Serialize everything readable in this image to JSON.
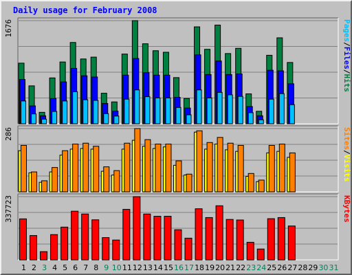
{
  "title": "Daily usage for February 2008",
  "chart_data": [
    {
      "type": "bar",
      "panel": "top",
      "ymax_label": "1676",
      "legend": [
        {
          "text": "Pages",
          "color": "#00c0ff"
        },
        {
          "text": "/",
          "color": "#000000"
        },
        {
          "text": "Files",
          "color": "#0000ff"
        },
        {
          "text": "/",
          "color": "#000000"
        },
        {
          "text": "Hits",
          "color": "#008040"
        }
      ],
      "days": [
        1,
        2,
        3,
        4,
        5,
        6,
        7,
        8,
        9,
        10,
        11,
        12,
        13,
        14,
        15,
        16,
        17,
        18,
        19,
        20,
        21,
        22,
        23,
        24,
        25,
        26,
        27
      ],
      "series": [
        {
          "name": "Hits",
          "color": "#008040",
          "values": [
            985,
            616,
            186,
            745,
            1004,
            1321,
            1053,
            1083,
            496,
            355,
            1133,
            1676,
            1300,
            1187,
            1162,
            750,
            411,
            1575,
            1210,
            1604,
            1141,
            1226,
            486,
            203,
            1113,
            1397,
            996
          ]
        },
        {
          "name": "Files",
          "color": "#0000ff",
          "values": [
            720,
            290,
            130,
            410,
            680,
            900,
            780,
            760,
            330,
            205,
            790,
            1060,
            830,
            790,
            790,
            430,
            255,
            1120,
            800,
            1020,
            800,
            810,
            280,
            130,
            870,
            860,
            650
          ]
        },
        {
          "name": "Pages",
          "color": "#00c0ff",
          "values": [
            370,
            160,
            75,
            200,
            370,
            520,
            390,
            380,
            165,
            125,
            400,
            550,
            440,
            420,
            420,
            265,
            145,
            550,
            420,
            510,
            470,
            445,
            180,
            65,
            400,
            490,
            310
          ]
        }
      ]
    },
    {
      "type": "bar",
      "panel": "middle",
      "ymax_label": "286",
      "legend": [
        {
          "text": "Sites",
          "color": "#ff8000"
        },
        {
          "text": "/",
          "color": "#000000"
        },
        {
          "text": "Visits",
          "color": "#ffff00"
        }
      ],
      "days": [
        1,
        2,
        3,
        4,
        5,
        6,
        7,
        8,
        9,
        10,
        11,
        12,
        13,
        14,
        15,
        16,
        17,
        18,
        19,
        20,
        21,
        22,
        23,
        24,
        25,
        26,
        27
      ],
      "series": [
        {
          "name": "Visits",
          "color": "#ffff00",
          "values": [
            186,
            86,
            43,
            90,
            166,
            193,
            196,
            193,
            93,
            76,
            193,
            233,
            206,
            196,
            203,
            120,
            76,
            270,
            193,
            216,
            190,
            183,
            70,
            46,
            176,
            183,
            156
          ]
        },
        {
          "name": "Sites",
          "color": "#ff8000",
          "values": [
            210,
            90,
            50,
            110,
            186,
            216,
            220,
            206,
            113,
            96,
            220,
            286,
            236,
            216,
            216,
            140,
            80,
            276,
            223,
            246,
            220,
            210,
            83,
            53,
            210,
            216,
            176
          ]
        }
      ]
    },
    {
      "type": "bar",
      "panel": "bottom",
      "ymax_label": "337723",
      "legend": [
        {
          "text": "KBytes",
          "color": "#ff0000"
        }
      ],
      "days": [
        1,
        2,
        3,
        4,
        5,
        6,
        7,
        8,
        9,
        10,
        11,
        12,
        13,
        14,
        15,
        16,
        17,
        18,
        19,
        20,
        21,
        22,
        23,
        24,
        25,
        26,
        27
      ],
      "series": [
        {
          "name": "KBytes",
          "color": "#ff0000",
          "values": [
            219000,
            130000,
            44000,
            135000,
            175000,
            260000,
            245000,
            214000,
            119000,
            106000,
            270000,
            337723,
            245000,
            233000,
            233000,
            161000,
            116000,
            273000,
            226000,
            289000,
            216000,
            213000,
            94000,
            58000,
            220000,
            226000,
            181000
          ]
        }
      ]
    }
  ],
  "x_axis": {
    "labels": [
      {
        "text": "1",
        "color": "#000000"
      },
      {
        "text": "2",
        "color": "#000000"
      },
      {
        "text": "3",
        "color": "#00805a"
      },
      {
        "text": "4",
        "color": "#000000"
      },
      {
        "text": "5",
        "color": "#000000"
      },
      {
        "text": "6",
        "color": "#000000"
      },
      {
        "text": "7",
        "color": "#000000"
      },
      {
        "text": "8",
        "color": "#000000"
      },
      {
        "text": "9",
        "color": "#00805a"
      },
      {
        "text": "10",
        "color": "#00805a"
      },
      {
        "text": "11",
        "color": "#000000"
      },
      {
        "text": "12",
        "color": "#000000"
      },
      {
        "text": "13",
        "color": "#000000"
      },
      {
        "text": "14",
        "color": "#000000"
      },
      {
        "text": "15",
        "color": "#000000"
      },
      {
        "text": "16",
        "color": "#00805a"
      },
      {
        "text": "17",
        "color": "#00805a"
      },
      {
        "text": "18",
        "color": "#000000"
      },
      {
        "text": "19",
        "color": "#000000"
      },
      {
        "text": "20",
        "color": "#000000"
      },
      {
        "text": "21",
        "color": "#000000"
      },
      {
        "text": "22",
        "color": "#000000"
      },
      {
        "text": "23",
        "color": "#00805a"
      },
      {
        "text": "24",
        "color": "#00805a"
      },
      {
        "text": "25",
        "color": "#000000"
      },
      {
        "text": "26",
        "color": "#000000"
      },
      {
        "text": "27",
        "color": "#000000"
      },
      {
        "text": "28",
        "color": "#000000"
      },
      {
        "text": "29",
        "color": "#000000"
      },
      {
        "text": "30",
        "color": "#00805a"
      },
      {
        "text": "31",
        "color": "#00805a"
      }
    ]
  }
}
